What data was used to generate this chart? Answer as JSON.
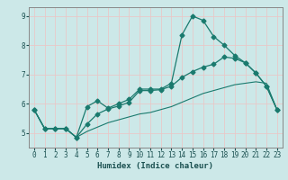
{
  "xlabel": "Humidex (Indice chaleur)",
  "bg_color": "#cce8e8",
  "grid_color": "#e8c8c8",
  "line_color": "#1a7a6e",
  "xlim": [
    -0.5,
    23.5
  ],
  "ylim": [
    4.5,
    9.3
  ],
  "xticks": [
    0,
    1,
    2,
    3,
    4,
    5,
    6,
    7,
    8,
    9,
    10,
    11,
    12,
    13,
    14,
    15,
    16,
    17,
    18,
    19,
    20,
    21,
    22,
    23
  ],
  "yticks": [
    5,
    6,
    7,
    8,
    9
  ],
  "line1_x": [
    0,
    1,
    2,
    3,
    4,
    5,
    6,
    7,
    8,
    9,
    10,
    11,
    12,
    13,
    14,
    15,
    16,
    17,
    18,
    19,
    20,
    21,
    22,
    23
  ],
  "line1_y": [
    5.8,
    5.15,
    5.15,
    5.15,
    4.85,
    5.9,
    6.1,
    5.85,
    6.0,
    6.15,
    6.5,
    6.5,
    6.5,
    6.7,
    8.35,
    9.0,
    8.85,
    8.3,
    8.0,
    7.65,
    7.4,
    7.05,
    6.6,
    5.8
  ],
  "line2_x": [
    0,
    1,
    2,
    3,
    4,
    5,
    6,
    7,
    8,
    9,
    10,
    11,
    12,
    13,
    14,
    15,
    16,
    17,
    18,
    19,
    20,
    21,
    22,
    23
  ],
  "line2_y": [
    5.8,
    5.15,
    5.15,
    5.15,
    4.85,
    5.3,
    5.65,
    5.82,
    5.92,
    6.05,
    6.45,
    6.45,
    6.48,
    6.6,
    6.9,
    7.1,
    7.25,
    7.35,
    7.6,
    7.55,
    7.4,
    7.05,
    6.6,
    5.8
  ],
  "line3_x": [
    0,
    1,
    2,
    3,
    4,
    5,
    6,
    7,
    8,
    9,
    10,
    11,
    12,
    13,
    14,
    15,
    16,
    17,
    18,
    19,
    20,
    21,
    22,
    23
  ],
  "line3_y": [
    5.8,
    5.15,
    5.15,
    5.15,
    4.85,
    5.05,
    5.2,
    5.35,
    5.45,
    5.55,
    5.65,
    5.7,
    5.8,
    5.9,
    6.05,
    6.2,
    6.35,
    6.45,
    6.55,
    6.65,
    6.7,
    6.75,
    6.7,
    5.8
  ]
}
